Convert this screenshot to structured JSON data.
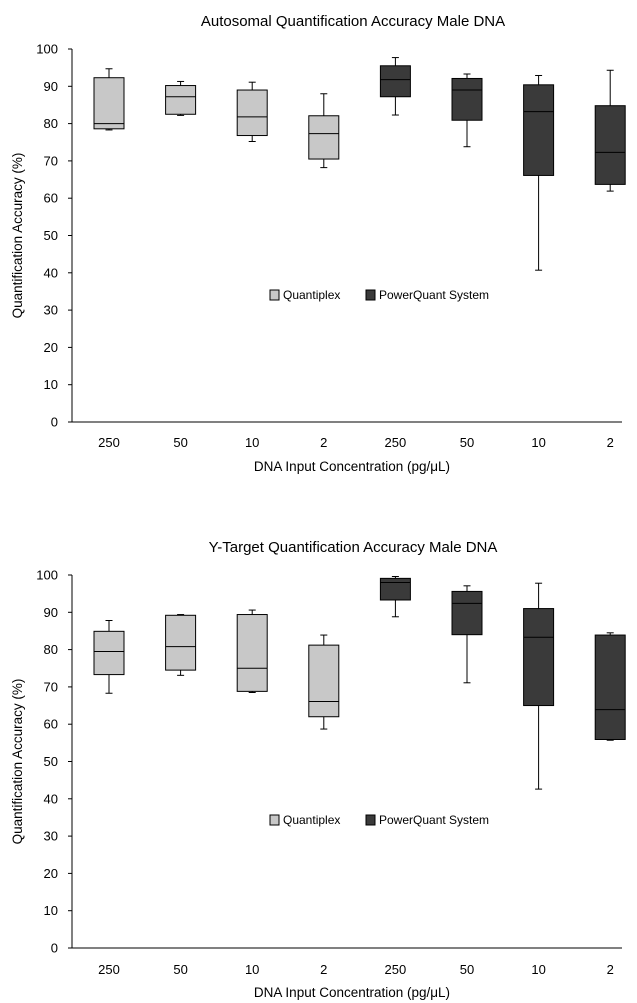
{
  "colors": {
    "quantiplex_fill": "#c8c8c8",
    "powerquant_fill": "#3a3a3a",
    "box_stroke": "#000000",
    "axis": "#000000"
  },
  "legend": {
    "series": [
      "Quantiplex",
      "PowerQuant System"
    ]
  },
  "chart_data": [
    {
      "type": "box",
      "title": "Autosomal Quantification Accuracy Male DNA",
      "xlabel": "DNA Input Concentration (pg/μL)",
      "ylabel": "Quantification Accuracy (%)",
      "ylim": [
        0,
        100
      ],
      "yticks": [
        0,
        10,
        20,
        30,
        40,
        50,
        60,
        70,
        80,
        90,
        100
      ],
      "categories": [
        "250",
        "50",
        "10",
        "2",
        "250",
        "50",
        "10",
        "2"
      ],
      "grid": false,
      "legend_position": "center",
      "series": [
        {
          "name": "Quantiplex",
          "boxes": [
            {
              "category": "250",
              "min": 78.3,
              "q1": 78.6,
              "median": 80.0,
              "q3": 92.3,
              "max": 94.7
            },
            {
              "category": "50",
              "min": 82.2,
              "q1": 82.5,
              "median": 87.2,
              "q3": 90.2,
              "max": 91.3
            },
            {
              "category": "10",
              "min": 75.2,
              "q1": 76.8,
              "median": 81.8,
              "q3": 89.0,
              "max": 91.1
            },
            {
              "category": "2",
              "min": 68.2,
              "q1": 70.5,
              "median": 77.3,
              "q3": 82.1,
              "max": 88.0
            }
          ]
        },
        {
          "name": "PowerQuant System",
          "boxes": [
            {
              "category": "250",
              "min": 82.3,
              "q1": 87.2,
              "median": 91.8,
              "q3": 95.5,
              "max": 97.7
            },
            {
              "category": "50",
              "min": 73.8,
              "q1": 80.9,
              "median": 89.0,
              "q3": 92.1,
              "max": 93.3
            },
            {
              "category": "10",
              "min": 40.7,
              "q1": 66.1,
              "median": 83.2,
              "q3": 90.4,
              "max": 92.9
            },
            {
              "category": "2",
              "min": 61.9,
              "q1": 63.7,
              "median": 72.3,
              "q3": 84.8,
              "max": 94.3
            }
          ]
        }
      ]
    },
    {
      "type": "box",
      "title": "Y-Target Quantification Accuracy Male DNA",
      "xlabel": "DNA Input Concentration (pg/μL)",
      "ylabel": "Quantification Accuracy (%)",
      "ylim": [
        0,
        100
      ],
      "yticks": [
        0,
        10,
        20,
        30,
        40,
        50,
        60,
        70,
        80,
        90,
        100
      ],
      "categories": [
        "250",
        "50",
        "10",
        "2",
        "250",
        "50",
        "10",
        "2"
      ],
      "grid": false,
      "legend_position": "center",
      "series": [
        {
          "name": "Quantiplex",
          "boxes": [
            {
              "category": "250",
              "min": 68.3,
              "q1": 73.3,
              "median": 79.5,
              "q3": 84.9,
              "max": 87.8
            },
            {
              "category": "50",
              "min": 73.1,
              "q1": 74.5,
              "median": 80.8,
              "q3": 89.2,
              "max": 89.4
            },
            {
              "category": "10",
              "min": 68.5,
              "q1": 68.8,
              "median": 75.0,
              "q3": 89.4,
              "max": 90.6
            },
            {
              "category": "2",
              "min": 58.7,
              "q1": 62.0,
              "median": 66.1,
              "q3": 81.2,
              "max": 83.9
            }
          ]
        },
        {
          "name": "PowerQuant System",
          "boxes": [
            {
              "category": "250",
              "min": 88.8,
              "q1": 93.3,
              "median": 98.0,
              "q3": 99.1,
              "max": 99.6
            },
            {
              "category": "50",
              "min": 71.1,
              "q1": 84.0,
              "median": 92.4,
              "q3": 95.6,
              "max": 97.1
            },
            {
              "category": "10",
              "min": 42.6,
              "q1": 65.0,
              "median": 83.3,
              "q3": 91.0,
              "max": 97.8
            },
            {
              "category": "2",
              "min": 55.7,
              "q1": 55.9,
              "median": 63.9,
              "q3": 83.9,
              "max": 84.5
            }
          ]
        }
      ]
    }
  ]
}
